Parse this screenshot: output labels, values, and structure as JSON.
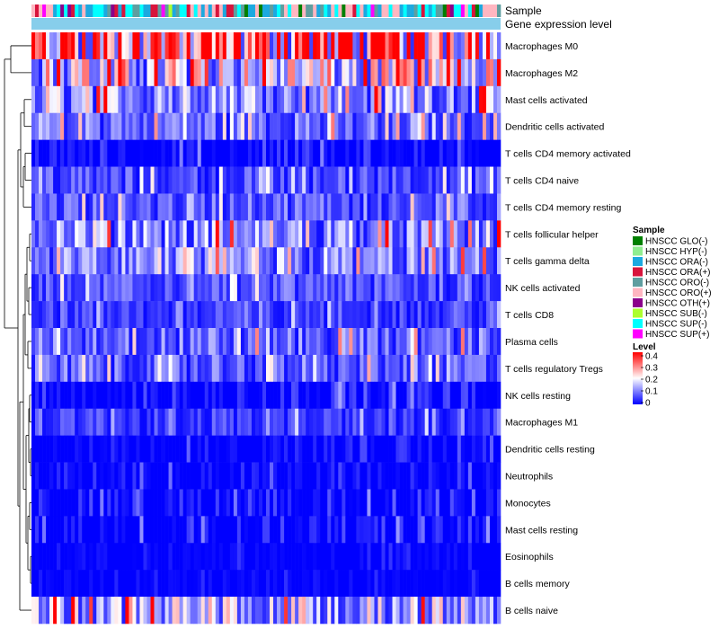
{
  "chart_data": {
    "type": "heatmap",
    "annotation_labels": [
      "Sample",
      "Gene expression level"
    ],
    "rows": [
      {
        "name": "Macrophages M0",
        "mean": 0.26
      },
      {
        "name": "Macrophages M2",
        "mean": 0.15
      },
      {
        "name": "Mast cells activated",
        "mean": 0.1
      },
      {
        "name": "Dendritic cells activated",
        "mean": 0.07
      },
      {
        "name": "T cells CD4 memory activated",
        "mean": 0.03
      },
      {
        "name": "T cells CD4 naive",
        "mean": 0.05
      },
      {
        "name": "T cells CD4 memory resting",
        "mean": 0.06
      },
      {
        "name": "T cells follicular helper",
        "mean": 0.09
      },
      {
        "name": "T cells gamma delta",
        "mean": 0.08
      },
      {
        "name": "NK cells activated",
        "mean": 0.05
      },
      {
        "name": "T cells CD8",
        "mean": 0.04
      },
      {
        "name": "Plasma cells",
        "mean": 0.07
      },
      {
        "name": "T cells regulatory  Tregs",
        "mean": 0.06
      },
      {
        "name": "NK cells resting",
        "mean": 0.03
      },
      {
        "name": "Macrophages M1",
        "mean": 0.04
      },
      {
        "name": "Dendritic cells resting",
        "mean": 0.02
      },
      {
        "name": "Neutrophils",
        "mean": 0.02
      },
      {
        "name": "Monocytes",
        "mean": 0.03
      },
      {
        "name": "Mast cells resting",
        "mean": 0.03
      },
      {
        "name": "Eosinophils",
        "mean": 0.01
      },
      {
        "name": "B cells memory",
        "mean": 0.01
      },
      {
        "name": "B cells naive",
        "mean": 0.12
      }
    ],
    "n_samples": 130,
    "legend_sample": {
      "title": "Sample",
      "entries": [
        {
          "label": "HNSCC GLO(-)",
          "color": "#008000"
        },
        {
          "label": "HNSCC HYP(-)",
          "color": "#90ee90"
        },
        {
          "label": "HNSCC ORA(-)",
          "color": "#1ca9e0"
        },
        {
          "label": "HNSCC ORA(+)",
          "color": "#d8143c"
        },
        {
          "label": "HNSCC ORO(-)",
          "color": "#5f9ea0"
        },
        {
          "label": "HNSCC ORO(+)",
          "color": "#ffb6c1"
        },
        {
          "label": "HNSCC OTH(+)",
          "color": "#8b008b"
        },
        {
          "label": "HNSCC SUB(-)",
          "color": "#adff2f"
        },
        {
          "label": "HNSCC SUP(-)",
          "color": "#00ffff"
        },
        {
          "label": "HNSCC SUP(+)",
          "color": "#ff00ff"
        }
      ]
    },
    "legend_level": {
      "title": "Level",
      "range": [
        0,
        0.4
      ],
      "ticks": [
        "0.4",
        "0.3",
        "0.2",
        "0.1",
        "0"
      ],
      "colors": [
        "#0000ff",
        "#ffffff",
        "#ff0000"
      ]
    },
    "gene_expression_color": "#87ceeb",
    "dendrogram": "rows clustered hierarchically"
  }
}
